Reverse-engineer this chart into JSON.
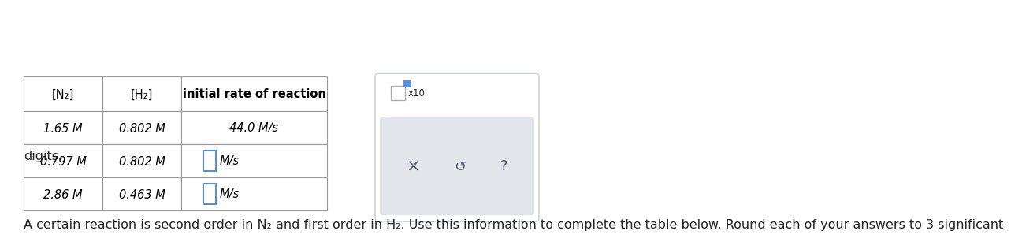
{
  "title_line1": "A certain reaction is second order in N₂ and first order in H₂. Use this information to complete the table below. Round each of your answers to 3 significant",
  "title_line2": "digits.",
  "col_headers": [
    "[N₂]",
    "[H₂]",
    "initial rate of reaction"
  ],
  "row1": [
    "1.65 M",
    "0.802 M",
    "44.0 M/s"
  ],
  "row2": [
    "0.797 M",
    "0.802 M",
    null
  ],
  "row3": [
    "2.86 M",
    "0.463 M",
    null
  ],
  "bg_color": "#ffffff",
  "border_color": "#999999",
  "input_box_color": "#5b8dd9",
  "widget_bg": "#e2e6ea",
  "widget_border": "#c8cdd2",
  "text_color": "#222222",
  "btn_color": "#4a5568"
}
